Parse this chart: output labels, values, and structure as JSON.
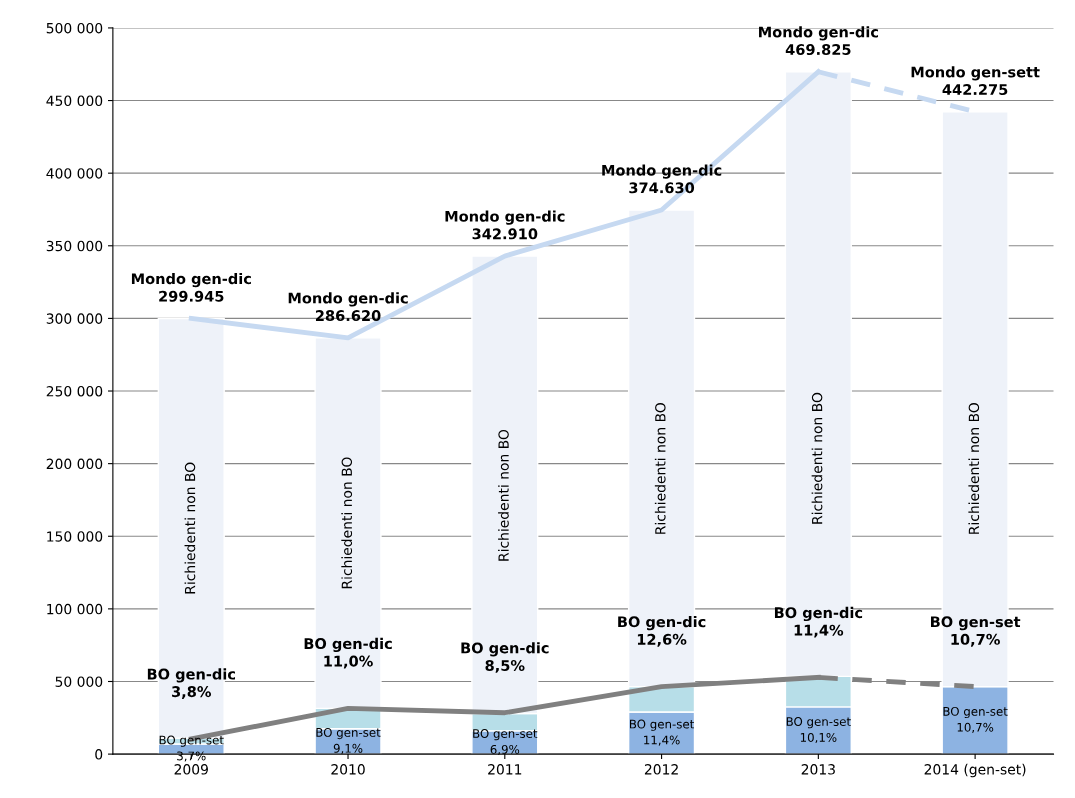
{
  "chart_data": {
    "type": "bar",
    "stacked": true,
    "categories": [
      "2009",
      "2010",
      "2011",
      "2012",
      "2013",
      "2014 (gen-set)"
    ],
    "series": [
      {
        "color": "#8db3e2",
        "values": [
          7000,
          17500,
          16000,
          29000,
          32500,
          46500
        ],
        "value_labels": [
          "BO gen-set\n3,7%",
          "BO gen-set\n9,1%",
          "BO gen-set\n6,9%",
          "BO gen-set\n11,4%",
          "BO gen-set\n10,1%",
          "BO gen-set\n10,7%"
        ]
      },
      {
        "color": "#b7dee8",
        "values": [
          4000,
          14000,
          12000,
          17500,
          21000,
          0
        ]
      },
      {
        "color": "#eef2f9",
        "values": [
          288945,
          255120,
          314910,
          328130,
          416325,
          395775
        ],
        "value_labels": [
          "Richiedenti non BO",
          "Richiedenti non BO",
          "Richiedenti non BO",
          "Richiedenti non BO",
          "Richiedenti non BO",
          "Richiedenti non BO"
        ]
      },
      {
        "type": "line",
        "color": "#c6d9f1",
        "line_style": "solid",
        "values": [
          299945,
          286620,
          342910,
          374630,
          469825,
          null
        ],
        "value_labels": [
          "Mondo gen-dic\n299.945",
          "Mondo gen-dic\n286.620",
          "Mondo gen-dic\n342.910",
          "Mondo gen-dic\n374.630",
          "Mondo gen-dic\n469.825",
          null
        ]
      },
      {
        "type": "line",
        "color": "#c6d9f1",
        "line_style": "dashed",
        "values": [
          null,
          null,
          null,
          null,
          469825,
          442275
        ],
        "value_labels": [
          null,
          null,
          null,
          null,
          null,
          "Mondo gen-sett\n442.275"
        ]
      },
      {
        "type": "line",
        "color": "#808080",
        "line_style": "solid",
        "values": [
          10500,
          31500,
          28500,
          46500,
          52800,
          null
        ],
        "value_labels": [
          "BO gen-dic\n3,8%",
          "BO gen-dic\n11,0%",
          "BO gen-dic\n8,5%",
          "BO gen-dic\n12,6%",
          "BO gen-dic\n11,4%",
          null
        ]
      },
      {
        "type": "line",
        "color": "#808080",
        "line_style": "dashed",
        "values": [
          null,
          null,
          null,
          null,
          52800,
          46500
        ],
        "value_labels": [
          null,
          null,
          null,
          null,
          null,
          "BO gen-set\n10,7%"
        ]
      }
    ],
    "ylim": [
      0,
      500000
    ],
    "yticks": [
      {
        "value": 0,
        "label": "0"
      },
      {
        "value": 50000,
        "label": "50 000"
      },
      {
        "value": 100000,
        "label": "100 000"
      },
      {
        "value": 150000,
        "label": "150 000"
      },
      {
        "value": 200000,
        "label": "200 000"
      },
      {
        "value": 250000,
        "label": "250 000"
      },
      {
        "value": 300000,
        "label": "300 000"
      },
      {
        "value": 350000,
        "label": "350 000"
      },
      {
        "value": 400000,
        "label": "400 000"
      },
      {
        "value": 450000,
        "label": "450 000"
      },
      {
        "value": 500000,
        "label": "500 000"
      }
    ],
    "grid": "y",
    "legend": false
  }
}
